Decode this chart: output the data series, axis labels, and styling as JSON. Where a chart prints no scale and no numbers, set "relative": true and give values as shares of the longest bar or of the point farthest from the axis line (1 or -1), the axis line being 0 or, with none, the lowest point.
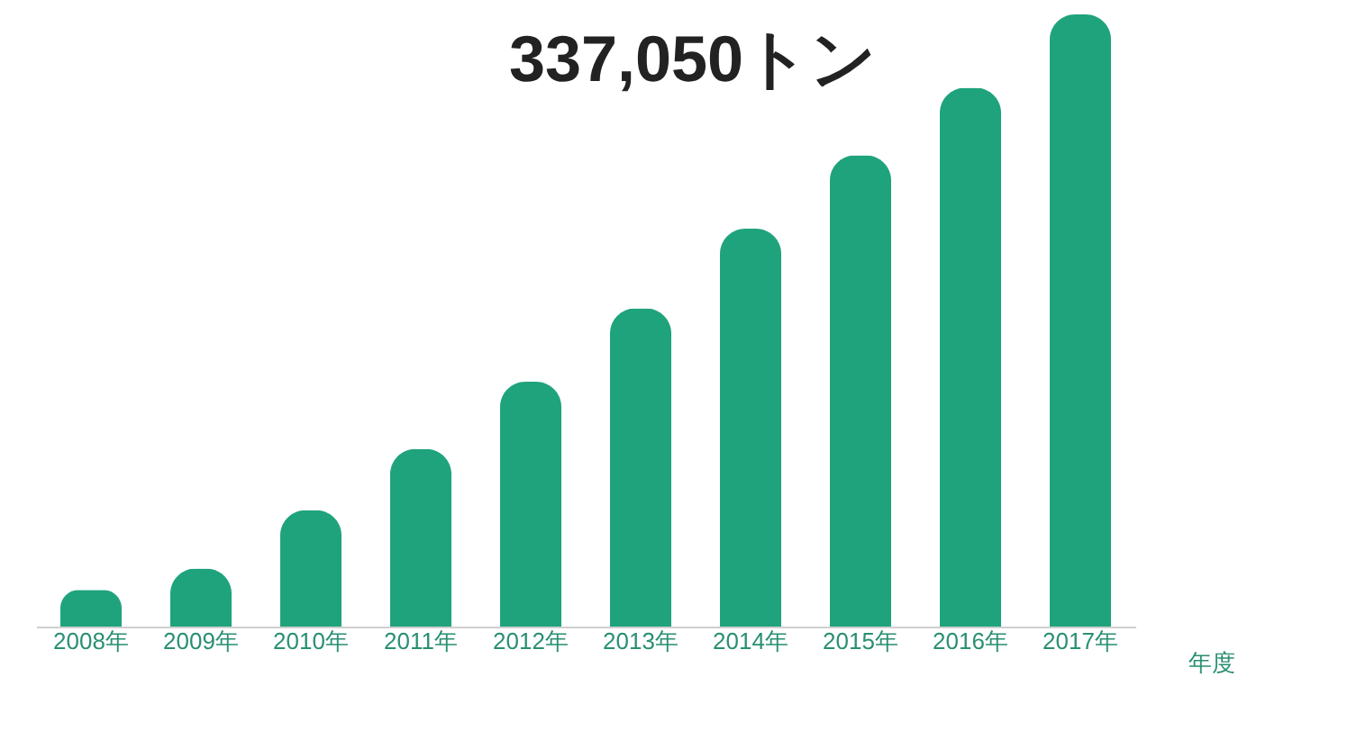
{
  "chart_data": {
    "type": "bar",
    "relative": true,
    "xlabel": "年度",
    "categories": [
      "2008年",
      "2009年",
      "2010年",
      "2011年",
      "2012年",
      "2013年",
      "2014年",
      "2015年",
      "2016年",
      "2017年"
    ],
    "values": [
      0.06,
      0.095,
      0.19,
      0.29,
      0.4,
      0.52,
      0.65,
      0.77,
      0.88,
      1
    ],
    "color": "#1fa37c",
    "annotations": [
      "337,050トン"
    ],
    "grid": false
  }
}
